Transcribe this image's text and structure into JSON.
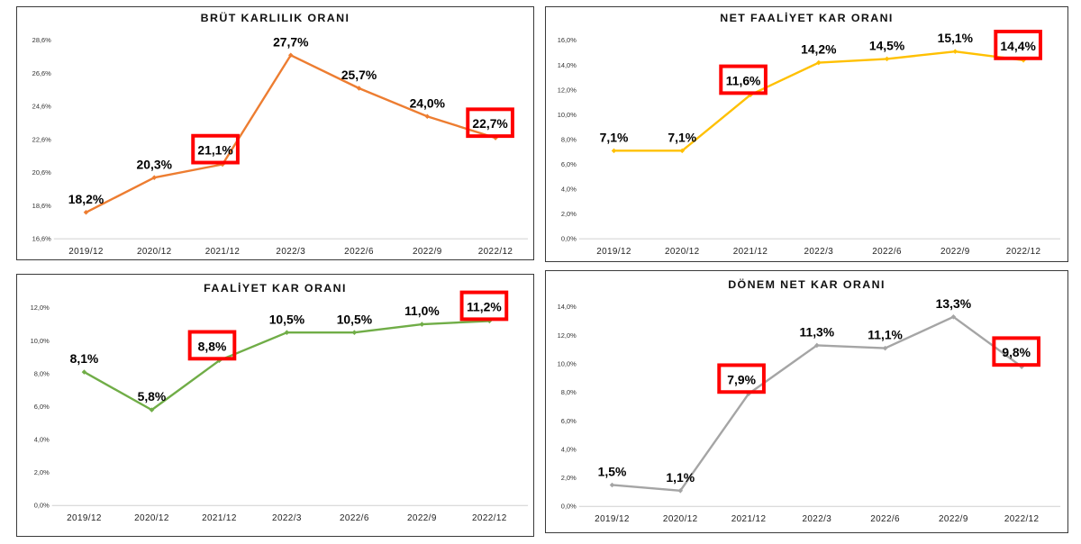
{
  "colors": {
    "orange": "#ED7D31",
    "gold": "#FFC000",
    "green": "#70AD47",
    "gray": "#A5A5A5",
    "highlight": "#FF0000"
  },
  "chart_data": [
    {
      "type": "line",
      "title": "BRÜT KARLILIK ORANI",
      "categories": [
        "2019/12",
        "2020/12",
        "2021/12",
        "2022/3",
        "2022/6",
        "2022/9",
        "2022/12"
      ],
      "values": [
        18.2,
        20.3,
        21.1,
        27.7,
        25.7,
        24.0,
        22.7
      ],
      "data_labels": [
        "18,2%",
        "20,3%",
        "21,1%",
        "27,7%",
        "25,7%",
        "24,0%",
        "22,7%"
      ],
      "ylim": [
        16.6,
        28.6
      ],
      "y_ticks": [
        16.6,
        18.6,
        20.6,
        22.6,
        24.6,
        26.6,
        28.6
      ],
      "y_tick_labels": [
        "16,6%",
        "18,6%",
        "20,6%",
        "22,6%",
        "24,6%",
        "26,6%",
        "28,6%"
      ],
      "color": "#ED7D31",
      "highlighted_labels": [
        "2021/12",
        "2022/12"
      ],
      "grid": false,
      "legend": "none"
    },
    {
      "type": "line",
      "title": "NET FAALİYET KAR ORANI",
      "categories": [
        "2019/12",
        "2020/12",
        "2021/12",
        "2022/3",
        "2022/6",
        "2022/9",
        "2022/12"
      ],
      "values": [
        7.1,
        7.1,
        11.6,
        14.2,
        14.5,
        15.1,
        14.4
      ],
      "data_labels": [
        "7,1%",
        "7,1%",
        "11,6%",
        "14,2%",
        "14,5%",
        "15,1%",
        "14,4%"
      ],
      "ylim": [
        0,
        16
      ],
      "y_ticks": [
        0,
        2,
        4,
        6,
        8,
        10,
        12,
        14,
        16
      ],
      "y_tick_labels": [
        "0,0%",
        "2,0%",
        "4,0%",
        "6,0%",
        "8,0%",
        "10,0%",
        "12,0%",
        "14,0%",
        "16,0%"
      ],
      "color": "#FFC000",
      "highlighted_labels": [
        "2021/12",
        "2022/12"
      ],
      "grid": false,
      "legend": "none"
    },
    {
      "type": "line",
      "title": "FAALİYET KAR ORANI",
      "categories": [
        "2019/12",
        "2020/12",
        "2021/12",
        "2022/3",
        "2022/6",
        "2022/9",
        "2022/12"
      ],
      "values": [
        8.1,
        5.8,
        8.8,
        10.5,
        10.5,
        11.0,
        11.2
      ],
      "data_labels": [
        "8,1%",
        "5,8%",
        "8,8%",
        "10,5%",
        "10,5%",
        "11,0%",
        "11,2%"
      ],
      "ylim": [
        0,
        12
      ],
      "y_ticks": [
        0,
        2,
        4,
        6,
        8,
        10,
        12
      ],
      "y_tick_labels": [
        "0,0%",
        "2,0%",
        "4,0%",
        "6,0%",
        "8,0%",
        "10,0%",
        "12,0%"
      ],
      "color": "#70AD47",
      "highlighted_labels": [
        "2021/12",
        "2022/12"
      ],
      "grid": false,
      "legend": "none"
    },
    {
      "type": "line",
      "title": "DÖNEM NET KAR ORANI",
      "categories": [
        "2019/12",
        "2020/12",
        "2021/12",
        "2022/3",
        "2022/6",
        "2022/9",
        "2022/12"
      ],
      "values": [
        1.5,
        1.1,
        7.9,
        11.3,
        11.1,
        13.3,
        9.8
      ],
      "data_labels": [
        "1,5%",
        "1,1%",
        "7,9%",
        "11,3%",
        "11,1%",
        "13,3%",
        "9,8%"
      ],
      "ylim": [
        0,
        14
      ],
      "y_ticks": [
        0,
        2,
        4,
        6,
        8,
        10,
        12,
        14
      ],
      "y_tick_labels": [
        "0,0%",
        "2,0%",
        "4,0%",
        "6,0%",
        "8,0%",
        "10,0%",
        "12,0%",
        "14,0%"
      ],
      "color": "#A5A5A5",
      "highlighted_labels": [
        "2021/12",
        "2022/12"
      ],
      "grid": false,
      "legend": "none"
    }
  ]
}
